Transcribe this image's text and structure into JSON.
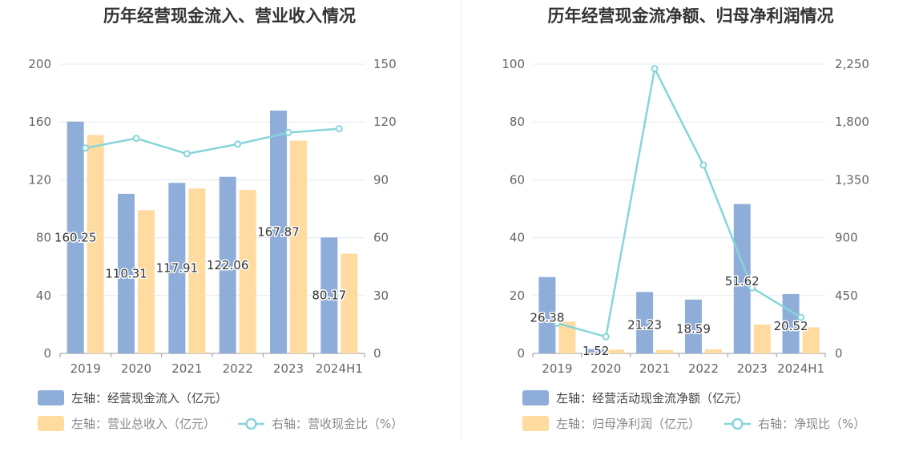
{
  "colors": {
    "bar_primary": "#8fadd9",
    "bar_secondary": "#ffdba0",
    "line": "#86d5d9",
    "grid": "#e6e9f2",
    "axis": "#999999"
  },
  "chart_data": [
    {
      "type": "bar",
      "title": "历年经营现金流入、营业收入情况",
      "categories": [
        "2019",
        "2020",
        "2021",
        "2022",
        "2023",
        "2024H1"
      ],
      "left_axis": {
        "ylim": [
          0,
          200
        ],
        "ticks": [
          "0",
          "40",
          "80",
          "120",
          "160",
          "200"
        ]
      },
      "right_axis": {
        "ylim": [
          0,
          150
        ],
        "ticks": [
          "0",
          "30",
          "60",
          "90",
          "120",
          "150"
        ]
      },
      "series": [
        {
          "name": "左轴：经营现金流入（亿元）",
          "kind": "bar",
          "axis": "left",
          "values": [
            160.25,
            110.31,
            117.91,
            122.06,
            167.87,
            80.17
          ],
          "labels": [
            "160.25",
            "110.31",
            "117.91",
            "122.06",
            "167.87",
            "80.17"
          ]
        },
        {
          "name": "左轴：营业总收入（亿元）",
          "kind": "bar",
          "axis": "left",
          "values": [
            151,
            99,
            114,
            113,
            147,
            69
          ]
        },
        {
          "name": "右轴：营收现金比（%）",
          "kind": "line",
          "axis": "right",
          "values": [
            106.5,
            111.5,
            103.5,
            108.5,
            114.5,
            116.5
          ]
        }
      ],
      "grid": true,
      "legend_position": "bottom-left"
    },
    {
      "type": "bar",
      "title": "历年经营现金流净额、归母净利润情况",
      "categories": [
        "2019",
        "2020",
        "2021",
        "2022",
        "2023",
        "2024H1"
      ],
      "left_axis": {
        "ylim": [
          0,
          100
        ],
        "ticks": [
          "0",
          "20",
          "40",
          "60",
          "80",
          "100"
        ]
      },
      "right_axis": {
        "ylim": [
          0,
          2250
        ],
        "ticks": [
          "0",
          "450",
          "900",
          "1,350",
          "1,800",
          "2,250"
        ]
      },
      "series": [
        {
          "name": "左轴：经营活动现金流净额（亿元）",
          "kind": "bar",
          "axis": "left",
          "values": [
            26.38,
            1.52,
            21.23,
            18.59,
            51.62,
            20.52
          ],
          "labels": [
            "26.38",
            "1.52",
            "21.23",
            "18.59",
            "51.62",
            "20.52"
          ]
        },
        {
          "name": "左轴：归母净利润（亿元）",
          "kind": "bar",
          "axis": "left",
          "values": [
            11,
            1.3,
            1.2,
            1.4,
            10,
            9
          ]
        },
        {
          "name": "右轴：净现比（%）",
          "kind": "line",
          "axis": "right",
          "values": [
            235,
            130,
            2215,
            1465,
            510,
            280
          ]
        }
      ],
      "grid": true,
      "legend_position": "bottom-left"
    }
  ]
}
